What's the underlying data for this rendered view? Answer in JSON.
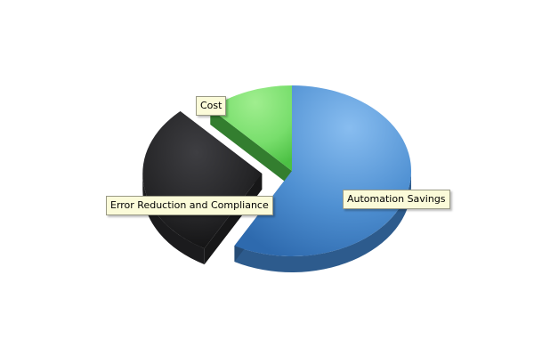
{
  "chart_data": {
    "type": "pie",
    "style": "3d-exploded",
    "title": "",
    "categories": [
      "Automation Savings",
      "Error Reduction and Compliance",
      "Cost"
    ],
    "values": [
      58,
      30,
      12
    ],
    "exploded": [
      false,
      true,
      false
    ],
    "colors": [
      "#3f7fc4",
      "#262628",
      "#55d24f"
    ],
    "legend": "none"
  }
}
